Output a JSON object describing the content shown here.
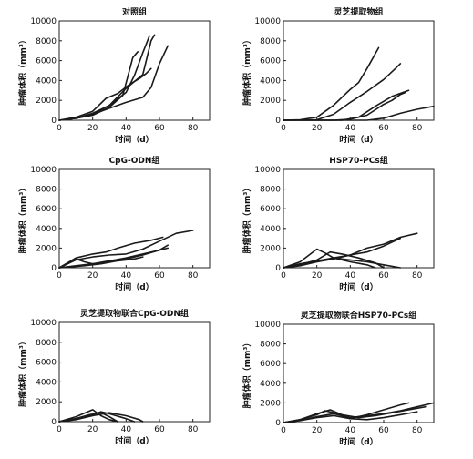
{
  "chart_data": [
    {
      "type": "line",
      "title": "对照组",
      "xlabel": "时间（d）",
      "ylabel": "肿瘤体积（mm³）",
      "xlim": [
        0,
        90
      ],
      "ylim": [
        0,
        10000
      ],
      "xticks": [
        "0",
        "20",
        "40",
        "60",
        "80"
      ],
      "yticks": [
        "0",
        "2000",
        "4000",
        "6000",
        "8000",
        "10000"
      ],
      "series": [
        {
          "x": [
            0,
            10,
            20,
            30,
            38,
            44,
            47
          ],
          "y": [
            0,
            200,
            500,
            1300,
            2500,
            6300,
            6900
          ]
        },
        {
          "x": [
            0,
            10,
            20,
            30,
            40,
            45,
            50,
            54
          ],
          "y": [
            0,
            200,
            700,
            1500,
            2800,
            4500,
            6800,
            8500
          ]
        },
        {
          "x": [
            0,
            10,
            20,
            30,
            40,
            50,
            55,
            57
          ],
          "y": [
            0,
            200,
            600,
            1500,
            3200,
            4600,
            8000,
            8600
          ]
        },
        {
          "x": [
            0,
            10,
            20,
            28,
            35,
            42,
            48,
            52,
            55
          ],
          "y": [
            0,
            300,
            900,
            2200,
            2700,
            3600,
            4200,
            4700,
            5200
          ]
        },
        {
          "x": [
            0,
            10,
            20,
            30,
            40,
            50,
            55,
            60,
            65
          ],
          "y": [
            0,
            200,
            600,
            1200,
            1800,
            2300,
            3300,
            5700,
            7500
          ]
        }
      ]
    },
    {
      "type": "line",
      "title": "灵芝提取物组",
      "xlabel": "时间（d）",
      "ylabel": "肿瘤体积（mm³）",
      "xlim": [
        0,
        90
      ],
      "ylim": [
        0,
        10000
      ],
      "xticks": [
        "0",
        "20",
        "40",
        "60",
        "80"
      ],
      "yticks": [
        "0",
        "2000",
        "4000",
        "6000",
        "8000",
        "10000"
      ],
      "series": [
        {
          "x": [
            0,
            10,
            20,
            30,
            40,
            45,
            50,
            57
          ],
          "y": [
            0,
            50,
            300,
            1500,
            3100,
            3800,
            5200,
            7300
          ]
        },
        {
          "x": [
            0,
            20,
            30,
            40,
            50,
            60,
            67,
            70
          ],
          "y": [
            0,
            50,
            600,
            1800,
            2900,
            4100,
            5200,
            5700
          ]
        },
        {
          "x": [
            0,
            30,
            40,
            50,
            60,
            65,
            70,
            73
          ],
          "y": [
            0,
            0,
            100,
            500,
            1600,
            2000,
            2600,
            2800
          ]
        },
        {
          "x": [
            0,
            35,
            45,
            55,
            65,
            75
          ],
          "y": [
            0,
            0,
            300,
            1400,
            2400,
            3000
          ]
        },
        {
          "x": [
            0,
            50,
            60,
            70,
            80,
            90
          ],
          "y": [
            0,
            0,
            200,
            700,
            1100,
            1400
          ]
        }
      ]
    },
    {
      "type": "line",
      "title": "CpG-ODN组",
      "xlabel": "时间（d）",
      "ylabel": "肿瘤体积（mm³）",
      "xlim": [
        0,
        90
      ],
      "ylim": [
        0,
        10000
      ],
      "xticks": [
        "0",
        "20",
        "40",
        "60",
        "80"
      ],
      "yticks": [
        "0",
        "2000",
        "4000",
        "6000",
        "8000",
        "10000"
      ],
      "series": [
        {
          "x": [
            0,
            5,
            10,
            20,
            30,
            40,
            50,
            60,
            70,
            80
          ],
          "y": [
            0,
            400,
            800,
            1100,
            1300,
            1400,
            1900,
            2700,
            3500,
            3800
          ]
        },
        {
          "x": [
            0,
            5,
            10,
            20,
            28,
            35,
            45,
            55,
            62
          ],
          "y": [
            0,
            500,
            1000,
            1400,
            1600,
            2000,
            2500,
            2800,
            3100
          ]
        },
        {
          "x": [
            0,
            5,
            10,
            15,
            20,
            30,
            40,
            50,
            60,
            65
          ],
          "y": [
            0,
            400,
            900,
            600,
            400,
            600,
            900,
            1300,
            1800,
            2300
          ]
        },
        {
          "x": [
            0,
            10,
            20,
            30,
            40,
            50,
            60,
            65
          ],
          "y": [
            0,
            200,
            400,
            700,
            1000,
            1400,
            1800,
            2000
          ]
        },
        {
          "x": [
            0,
            15,
            25,
            35,
            45,
            50
          ],
          "y": [
            0,
            200,
            400,
            700,
            900,
            1100
          ]
        }
      ]
    },
    {
      "type": "line",
      "title": "HSP70-PCs组",
      "xlabel": "时间（d）",
      "ylabel": "肿瘤体积（mm³）",
      "xlim": [
        0,
        90
      ],
      "ylim": [
        0,
        10000
      ],
      "xticks": [
        "0",
        "20",
        "40",
        "60",
        "80"
      ],
      "yticks": [
        "0",
        "2000",
        "4000",
        "6000",
        "8000",
        "10000"
      ],
      "series": [
        {
          "x": [
            0,
            10,
            20,
            30,
            40,
            50,
            60,
            70,
            80
          ],
          "y": [
            0,
            400,
            700,
            1000,
            1300,
            2000,
            2400,
            3100,
            3500
          ]
        },
        {
          "x": [
            0,
            10,
            20,
            30,
            40,
            50,
            60,
            70
          ],
          "y": [
            0,
            300,
            600,
            900,
            1300,
            1600,
            2200,
            3000
          ]
        },
        {
          "x": [
            0,
            10,
            20,
            25,
            30,
            40,
            50,
            55
          ],
          "y": [
            0,
            600,
            1900,
            1500,
            1000,
            600,
            300,
            0
          ]
        },
        {
          "x": [
            0,
            10,
            20,
            28,
            35,
            45,
            55,
            60
          ],
          "y": [
            0,
            300,
            800,
            1600,
            1400,
            1000,
            500,
            0
          ]
        },
        {
          "x": [
            0,
            10,
            20,
            30,
            40,
            50,
            60,
            70
          ],
          "y": [
            0,
            200,
            600,
            1000,
            800,
            600,
            300,
            0
          ]
        }
      ]
    },
    {
      "type": "line",
      "title": "灵芝提取物联合CpG-ODN组",
      "xlabel": "时间（d）",
      "ylabel": "肿瘤体积（mm³）",
      "xlim": [
        0,
        90
      ],
      "ylim": [
        0,
        10000
      ],
      "xticks": [
        "0",
        "20",
        "40",
        "60",
        "80"
      ],
      "yticks": [
        "0",
        "2000",
        "4000",
        "6000",
        "8000",
        "10000"
      ],
      "series": [
        {
          "x": [
            0,
            10,
            20,
            25,
            30,
            35
          ],
          "y": [
            0,
            500,
            1200,
            600,
            200,
            0
          ]
        },
        {
          "x": [
            0,
            10,
            20,
            25,
            30,
            40,
            45
          ],
          "y": [
            0,
            300,
            700,
            1000,
            800,
            300,
            0
          ]
        },
        {
          "x": [
            0,
            10,
            20,
            30,
            40,
            48,
            50
          ],
          "y": [
            0,
            200,
            600,
            900,
            600,
            200,
            0
          ]
        },
        {
          "x": [
            0,
            10,
            18,
            25,
            30,
            35
          ],
          "y": [
            0,
            300,
            700,
            900,
            500,
            0
          ]
        }
      ]
    },
    {
      "type": "line",
      "title": "灵芝提取物联合HSP70-PCs组",
      "xlabel": "时间（d）",
      "ylabel": "肿瘤体积（mm³）",
      "xlim": [
        0,
        90
      ],
      "ylim": [
        0,
        10000
      ],
      "xticks": [
        "0",
        "20",
        "40",
        "60",
        "80"
      ],
      "yticks": [
        "0",
        "2000",
        "4000",
        "6000",
        "8000",
        "10000"
      ],
      "series": [
        {
          "x": [
            0,
            10,
            20,
            25,
            30,
            40,
            50,
            60,
            70,
            75
          ],
          "y": [
            0,
            300,
            800,
            1200,
            1000,
            400,
            800,
            1300,
            1800,
            2000
          ]
        },
        {
          "x": [
            0,
            10,
            20,
            30,
            40,
            50,
            60,
            70,
            80,
            90
          ],
          "y": [
            0,
            200,
            600,
            900,
            500,
            700,
            900,
            1200,
            1600,
            2000
          ]
        },
        {
          "x": [
            0,
            10,
            20,
            28,
            35,
            45,
            55,
            65,
            75,
            85
          ],
          "y": [
            0,
            300,
            900,
            1300,
            800,
            500,
            700,
            1000,
            1300,
            1600
          ]
        },
        {
          "x": [
            0,
            10,
            20,
            30,
            40,
            50,
            60,
            70,
            80
          ],
          "y": [
            0,
            200,
            500,
            700,
            400,
            300,
            500,
            800,
            1100
          ]
        }
      ]
    }
  ]
}
